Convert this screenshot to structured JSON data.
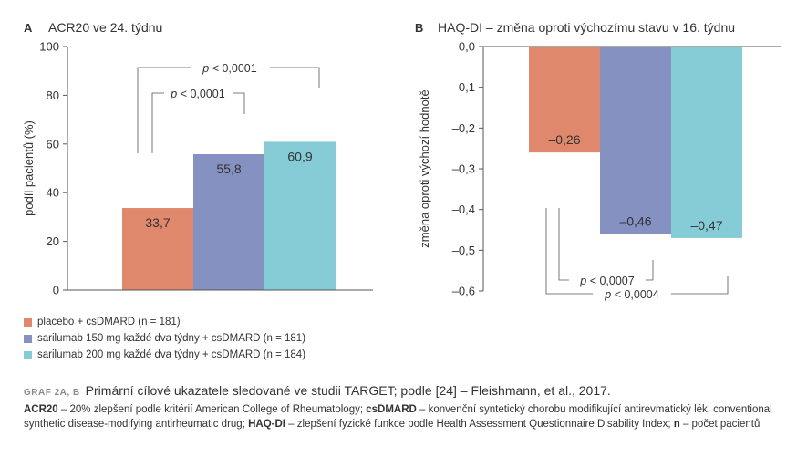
{
  "chart_data": [
    {
      "type": "bar",
      "panel_letter": "A",
      "title": "ACR20 ve 24. týdnu",
      "ylabel": "podíl pacientů  (%)",
      "ylim": [
        0,
        100
      ],
      "yticks": [
        0,
        20,
        40,
        60,
        80,
        100
      ],
      "ytick_labels": [
        "0",
        "20",
        "40",
        "60",
        "80",
        "100"
      ],
      "series": [
        {
          "name": "placebo + csDMARD (n = 181)",
          "value": 33.7,
          "label": "33,7",
          "color": "#e0886c"
        },
        {
          "name": "sarilumab 150 mg každé dva týdny + csDMARD (n = 181)",
          "value": 55.8,
          "label": "55,8",
          "color": "#8591c1"
        },
        {
          "name": "sarilumab 200 mg každé dva týdny + csDMARD (n = 184)",
          "value": 60.9,
          "label": "60,9",
          "color": "#86ccd6"
        }
      ],
      "annotations": [
        {
          "text_p": "p",
          "text_rest": " < 0,0001",
          "from": 0,
          "to": 1
        },
        {
          "text_p": "p",
          "text_rest": " < 0,0001",
          "from": 0,
          "to": 2
        }
      ],
      "grid": false
    },
    {
      "type": "bar",
      "panel_letter": "B",
      "title": "HAQ-DI – změna oproti výchozímu stavu v 16. týdnu",
      "ylabel": "změna oproti výchozí hodnotě",
      "ylim": [
        -0.6,
        0
      ],
      "yticks": [
        0,
        -0.1,
        -0.2,
        -0.3,
        -0.4,
        -0.5,
        -0.6
      ],
      "ytick_labels": [
        "0,0",
        "–0,1",
        "–0,2",
        "–0,3",
        "–0,4",
        "–0,5",
        "–0,6"
      ],
      "series": [
        {
          "name": "placebo + csDMARD (n = 181)",
          "value": -0.26,
          "label": "–0,26",
          "color": "#e0886c"
        },
        {
          "name": "sarilumab 150 mg každé dva týdny + csDMARD (n = 181)",
          "value": -0.46,
          "label": "–0,46",
          "color": "#8591c1"
        },
        {
          "name": "sarilumab 200 mg každé dva týdny + csDMARD (n = 184)",
          "value": -0.47,
          "label": "–0,47",
          "color": "#86ccd6"
        }
      ],
      "annotations": [
        {
          "text_p": "p",
          "text_rest": " < 0,0007",
          "from": 0,
          "to": 1
        },
        {
          "text_p": "p",
          "text_rest": " < 0,0004",
          "from": 0,
          "to": 2
        }
      ],
      "grid": false
    }
  ],
  "legend": [
    {
      "label": "placebo + csDMARD (n = 181)",
      "color": "#e0886c"
    },
    {
      "label": "sarilumab 150 mg každé dva týdny + csDMARD (n = 181)",
      "color": "#8591c1"
    },
    {
      "label": "sarilumab 200 mg každé dva týdny + csDMARD (n = 184)",
      "color": "#86ccd6"
    }
  ],
  "caption": {
    "label": "GRAF 2A, B",
    "title": "Primární cílové ukazatele sledované ve studii TARGET; podle [24] – Fleishmann, et al., 2017.",
    "defs": [
      {
        "term": "ACR20",
        "text": " – 20% zlepšení podle kritérií American College of Rheumatology; "
      },
      {
        "term": "csDMARD",
        "text": " – konvenční syntetický chorobu modifikující antirevmatický lék, conventional synthetic disease-modifying antirheumatic drug; "
      },
      {
        "term": "HAQ-DI",
        "text": " – zlepšení fyzické funkce podle Health Assessment Questionnaire Disability Index; "
      },
      {
        "term": "n",
        "text": " – počet pacientů"
      }
    ]
  }
}
